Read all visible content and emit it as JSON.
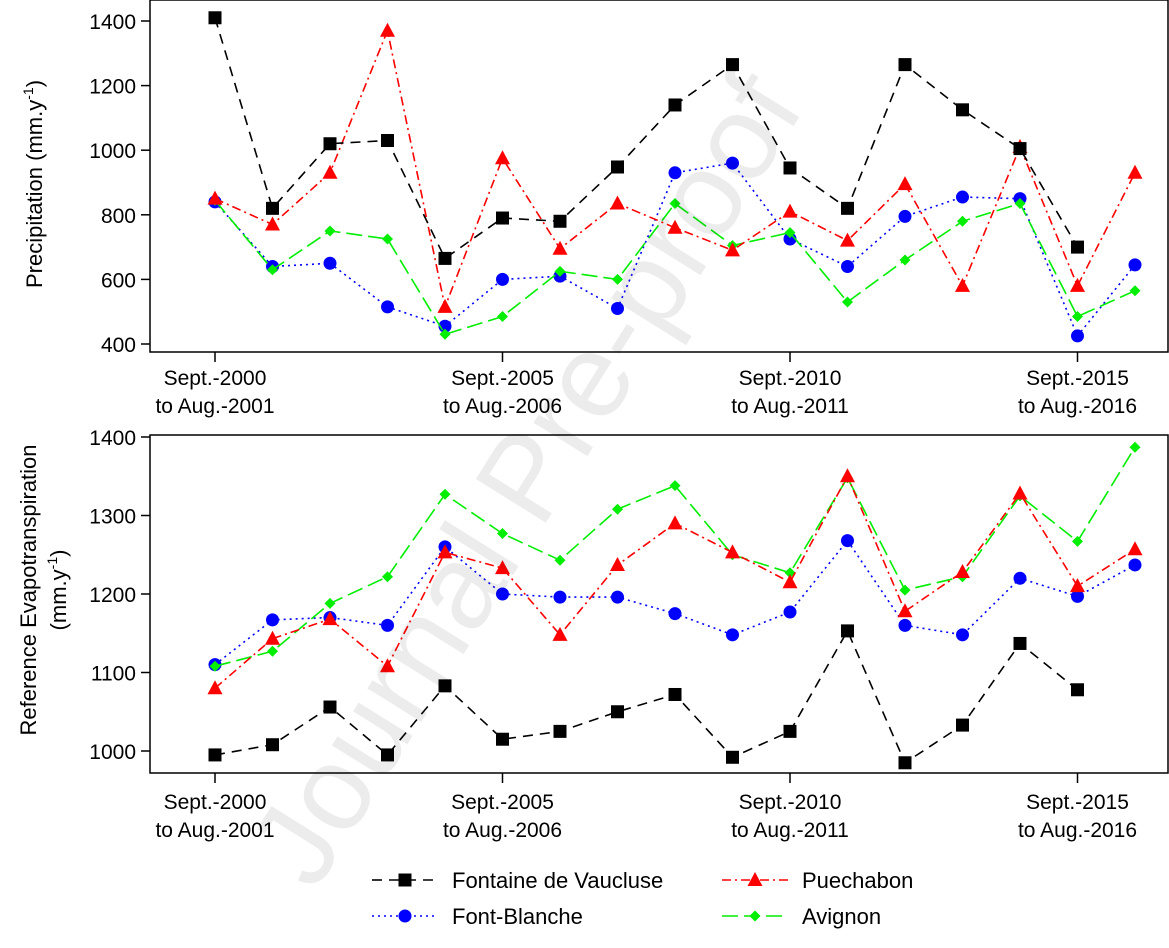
{
  "chart_data": [
    {
      "type": "line",
      "ylabel_main": "Precipitation (mm.y",
      "ylabel_sup": "-1",
      "ylabel_end": ")",
      "xlabel": "",
      "x": [
        2000,
        2001,
        2002,
        2003,
        2004,
        2005,
        2006,
        2007,
        2008,
        2009,
        2010,
        2011,
        2012,
        2013,
        2014,
        2015,
        2016
      ],
      "xticks": [
        {
          "x": 2000,
          "line1": "Sept.-2000",
          "line2": "to Aug.-2001"
        },
        {
          "x": 2005,
          "line1": "Sept.-2005",
          "line2": "to Aug.-2006"
        },
        {
          "x": 2010,
          "line1": "Sept.-2010",
          "line2": "to Aug.-2011"
        },
        {
          "x": 2015,
          "line1": "Sept.-2015",
          "line2": "to Aug.-2016"
        }
      ],
      "yticks": [
        400,
        600,
        800,
        1000,
        1200,
        1400
      ],
      "ylim": [
        380,
        1420
      ],
      "series": [
        {
          "name": "Fontaine de Vaucluse",
          "values": [
            1410,
            820,
            1020,
            1030,
            665,
            790,
            780,
            948,
            1140,
            1265,
            945,
            820,
            1265,
            1125,
            1005,
            700,
            null
          ]
        },
        {
          "name": "Font-Blanche",
          "values": [
            840,
            640,
            650,
            515,
            455,
            600,
            610,
            510,
            930,
            960,
            725,
            640,
            795,
            855,
            850,
            425,
            645
          ]
        },
        {
          "name": "Puechabon",
          "values": [
            850,
            770,
            930,
            1370,
            515,
            975,
            695,
            835,
            760,
            690,
            810,
            720,
            895,
            580,
            1010,
            580,
            930
          ]
        },
        {
          "name": "Avignon",
          "values": [
            845,
            630,
            750,
            725,
            430,
            485,
            625,
            600,
            835,
            705,
            745,
            530,
            660,
            780,
            835,
            485,
            565
          ]
        }
      ]
    },
    {
      "type": "line",
      "ylabel_line1": "Reference  Evapotranspiration",
      "ylabel_main": "(mm.y",
      "ylabel_sup": "-1",
      "ylabel_end": ")",
      "xlabel": "",
      "x": [
        2000,
        2001,
        2002,
        2003,
        2004,
        2005,
        2006,
        2007,
        2008,
        2009,
        2010,
        2011,
        2012,
        2013,
        2014,
        2015,
        2016
      ],
      "xticks": [
        {
          "x": 2000,
          "line1": "Sept.-2000",
          "line2": "to Aug.-2001"
        },
        {
          "x": 2005,
          "line1": "Sept.-2005",
          "line2": "to Aug.-2006"
        },
        {
          "x": 2010,
          "line1": "Sept.-2010",
          "line2": "to Aug.-2011"
        },
        {
          "x": 2015,
          "line1": "Sept.-2015",
          "line2": "to Aug.-2016"
        }
      ],
      "yticks": [
        1000,
        1100,
        1200,
        1300,
        1400
      ],
      "ylim": [
        970,
        1405
      ],
      "series": [
        {
          "name": "Fontaine de Vaucluse",
          "values": [
            995,
            1008,
            1056,
            995,
            1083,
            1015,
            1025,
            1050,
            1072,
            992,
            1025,
            1153,
            985,
            1033,
            1137,
            1078,
            null
          ]
        },
        {
          "name": "Font-Blanche",
          "values": [
            1110,
            1167,
            1170,
            1160,
            1260,
            1200,
            1196,
            1196,
            1175,
            1148,
            1177,
            1268,
            1160,
            1148,
            1220,
            1197,
            1237
          ]
        },
        {
          "name": "Puechabon",
          "values": [
            1080,
            1143,
            1168,
            1108,
            1253,
            1233,
            1148,
            1237,
            1290,
            1253,
            1215,
            1350,
            1178,
            1228,
            1328,
            1210,
            1257
          ]
        },
        {
          "name": "Avignon",
          "values": [
            1108,
            1127,
            1188,
            1222,
            1327,
            1277,
            1243,
            1308,
            1338,
            1250,
            1227,
            1348,
            1205,
            1222,
            1325,
            1267,
            1387
          ]
        }
      ]
    }
  ],
  "styles": {
    "Fontaine de Vaucluse": {
      "color": "#000000",
      "dash": "10,7",
      "marker": "square"
    },
    "Font-Blanche": {
      "color": "#0000FF",
      "dash": "2,4",
      "marker": "circle"
    },
    "Puechabon": {
      "color": "#FF0000",
      "dash": "9,4,2,4",
      "marker": "triangle"
    },
    "Avignon": {
      "color": "#00EE00",
      "dash": "16,6",
      "marker": "diamond"
    }
  },
  "legend": {
    "placement": "bottom",
    "items": [
      "Fontaine de Vaucluse",
      "Puechabon",
      "Font-Blanche",
      "Avignon"
    ]
  },
  "watermark": "Journal Pre-proof"
}
